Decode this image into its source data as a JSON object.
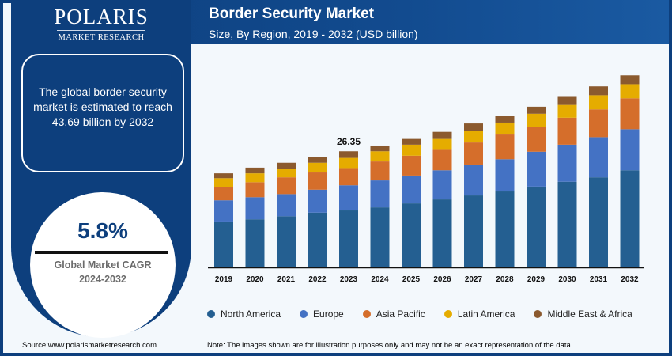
{
  "brand": {
    "name": "POLARIS",
    "tagline": "MARKET RESEARCH"
  },
  "header": {
    "title": "Border Security Market",
    "subtitle": "Size, By Region, 2019 - 2032 (USD billion)"
  },
  "info": {
    "text": "The global border security market is estimated to reach 43.69 billion by 2032"
  },
  "cagr": {
    "value": "5.8%",
    "label_line1": "Global Market CAGR",
    "label_line2": "2024-2032"
  },
  "footer": {
    "source": "Source:www.polarismarketresearch.com",
    "note": "Note: The images shown are for illustration purposes only and may not be an exact representation of the data."
  },
  "chart_data": {
    "type": "bar",
    "stacked": true,
    "title": "Border Security Market",
    "subtitle": "Size, By Region, 2019 - 2032 (USD billion)",
    "xlabel": "",
    "ylabel": "",
    "ylim": [
      0,
      45
    ],
    "grid": false,
    "legend_position": "bottom",
    "categories": [
      "2019",
      "2020",
      "2021",
      "2022",
      "2023",
      "2024",
      "2025",
      "2026",
      "2027",
      "2028",
      "2029",
      "2030",
      "2031",
      "2032"
    ],
    "series": [
      {
        "name": "North America",
        "color": "#245f91",
        "values": [
          10.4,
          10.9,
          11.6,
          12.4,
          12.9,
          13.6,
          14.5,
          15.4,
          16.3,
          17.2,
          18.3,
          19.4,
          20.4,
          22.0
        ]
      },
      {
        "name": "Europe",
        "color": "#4472c4",
        "values": [
          4.8,
          5.0,
          5.0,
          5.2,
          5.7,
          6.1,
          6.3,
          6.6,
          7.0,
          7.3,
          7.9,
          8.4,
          9.1,
          9.3
        ]
      },
      {
        "name": "Asia Pacific",
        "color": "#d56e2b",
        "values": [
          3.0,
          3.4,
          3.8,
          3.9,
          3.9,
          4.3,
          4.5,
          4.8,
          5.0,
          5.6,
          5.7,
          6.1,
          6.3,
          7.0
        ]
      },
      {
        "name": "Latin America",
        "color": "#e5ac00",
        "values": [
          2.0,
          2.0,
          2.0,
          2.2,
          2.3,
          2.3,
          2.5,
          2.3,
          2.7,
          2.7,
          2.9,
          2.9,
          3.2,
          3.2
        ]
      },
      {
        "name": "Middle East & Africa",
        "color": "#8b5a2e",
        "values": [
          1.1,
          1.3,
          1.3,
          1.3,
          1.5,
          1.3,
          1.3,
          1.6,
          1.6,
          1.6,
          1.6,
          2.0,
          2.0,
          2.0
        ]
      }
    ],
    "annotations": [
      {
        "category": "2023",
        "text": "26.35"
      }
    ]
  }
}
